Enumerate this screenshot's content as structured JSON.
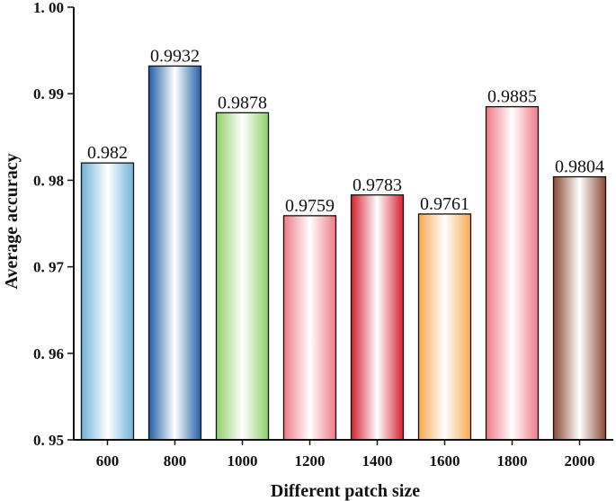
{
  "chart_data": {
    "type": "bar",
    "categories": [
      "600",
      "800",
      "1000",
      "1200",
      "1400",
      "1600",
      "1800",
      "2000"
    ],
    "values": [
      0.982,
      0.9932,
      0.9878,
      0.9759,
      0.9783,
      0.9761,
      0.9885,
      0.9804
    ],
    "value_labels": [
      "0.982",
      "0.9932",
      "0.9878",
      "0.9759",
      "0.9783",
      "0.9761",
      "0.9885",
      "0.9804"
    ],
    "xlabel": "Different patch size",
    "ylabel": "Average accuracy",
    "ylim": [
      0.95,
      1.0
    ],
    "yticks": [
      0.95,
      0.96,
      0.97,
      0.98,
      0.99,
      1.0
    ],
    "ytick_labels": [
      "0. 95",
      "0. 96",
      "0. 97",
      "0. 98",
      "0. 99",
      "1. 00"
    ],
    "bar_colors": [
      "#6fb3d9",
      "#1f5fa6",
      "#8fd06a",
      "#f07a86",
      "#d4202e",
      "#f7a850",
      "#f07a86",
      "#8a4a32"
    ],
    "grid": false,
    "legend": "none"
  }
}
